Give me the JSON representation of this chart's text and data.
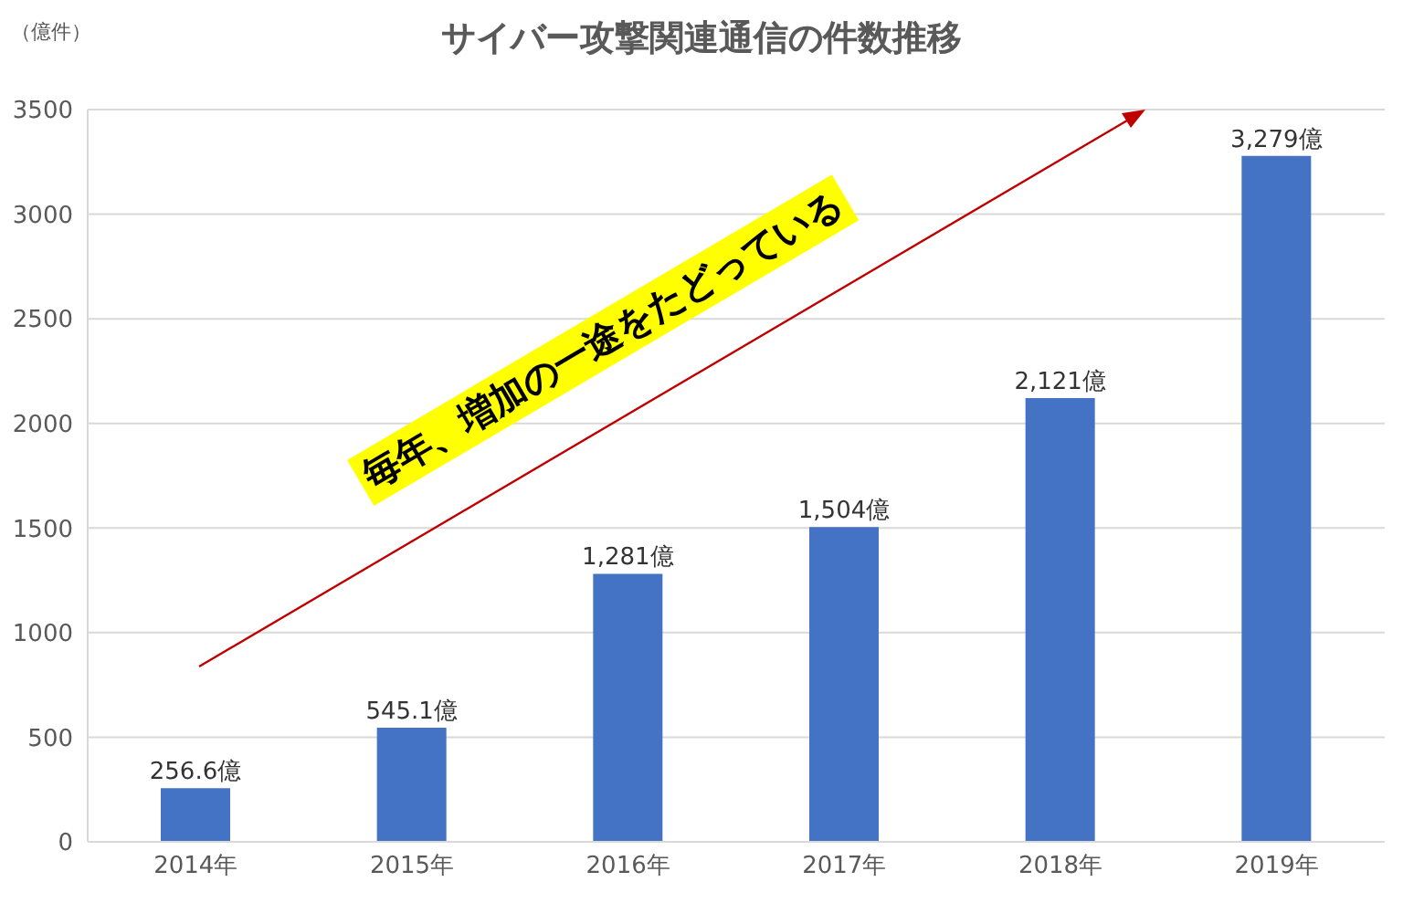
{
  "chart_data": {
    "type": "bar",
    "title": "サイバー攻撃関連通信の件数推移",
    "ylabel": "（億件）",
    "categories": [
      "2014年",
      "2015年",
      "2016年",
      "2017年",
      "2018年",
      "2019年"
    ],
    "values": [
      256.6,
      545.1,
      1281,
      1504,
      2121,
      3279
    ],
    "value_labels": [
      "256.6億",
      "545.1億",
      "1,281億",
      "1,504億",
      "2,121億",
      "3,279億"
    ],
    "color": "#4472c4",
    "ylim": [
      0,
      3500
    ],
    "yticks": [
      0,
      500,
      1000,
      1500,
      2000,
      2500,
      3000,
      3500
    ],
    "grid": "y",
    "legend": false,
    "annotations": [
      "毎年、増加の一途をたどっている"
    ]
  }
}
